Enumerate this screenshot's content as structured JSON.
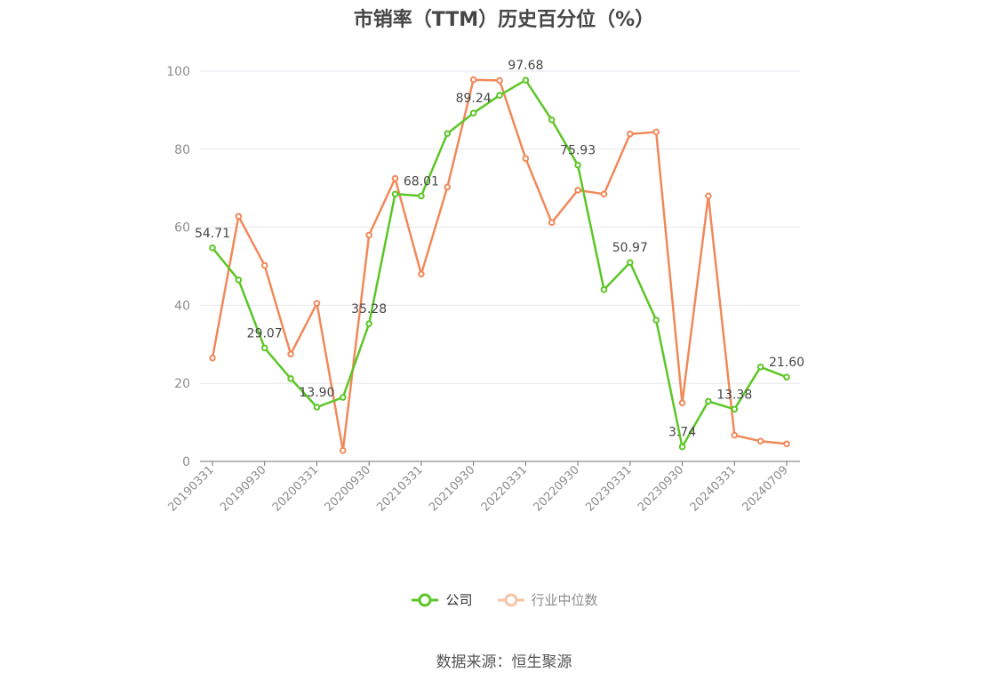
{
  "chart_data": {
    "type": "line",
    "title": "市销率（TTM）历史百分位（%）",
    "ylim": [
      0,
      100
    ],
    "yticks": [
      0,
      20,
      40,
      60,
      80,
      100
    ],
    "x_tick_labels": [
      "20190331",
      "20190930",
      "20200331",
      "20200930",
      "20210331",
      "20210930",
      "20220331",
      "20220930",
      "20230331",
      "20230930",
      "20240331",
      "20240709"
    ],
    "x": [
      "20190331",
      "20190630",
      "20190930",
      "20191231",
      "20200331",
      "20200630",
      "20200930",
      "20201231",
      "20210331",
      "20210630",
      "20210930",
      "20211231",
      "20220331",
      "20220630",
      "20220930",
      "20221231",
      "20230331",
      "20230630",
      "20230930",
      "20231231",
      "20240331",
      "20240630",
      "20240709"
    ],
    "grid": true,
    "legend_position": "bottom",
    "series": [
      {
        "name": "公司",
        "color": "#5cc626",
        "values": [
          54.71,
          46.5,
          29.07,
          21.2,
          13.9,
          16.4,
          35.28,
          68.5,
          68.01,
          84.0,
          89.24,
          93.8,
          97.68,
          87.5,
          75.93,
          44.0,
          50.97,
          36.2,
          3.74,
          15.4,
          13.38,
          24.2,
          21.6
        ],
        "labeled_indices": [
          0,
          2,
          4,
          6,
          8,
          10,
          12,
          14,
          16,
          18,
          20,
          22
        ]
      },
      {
        "name": "行业中位数",
        "color": "#f0895a",
        "values": [
          26.5,
          62.8,
          50.2,
          27.5,
          40.5,
          2.8,
          58.0,
          72.5,
          48.0,
          70.3,
          97.8,
          97.6,
          77.6,
          61.2,
          69.5,
          68.5,
          83.9,
          84.4,
          15.0,
          68.0,
          6.7,
          5.2,
          4.5
        ]
      }
    ]
  },
  "source": "数据来源：恒生聚源"
}
